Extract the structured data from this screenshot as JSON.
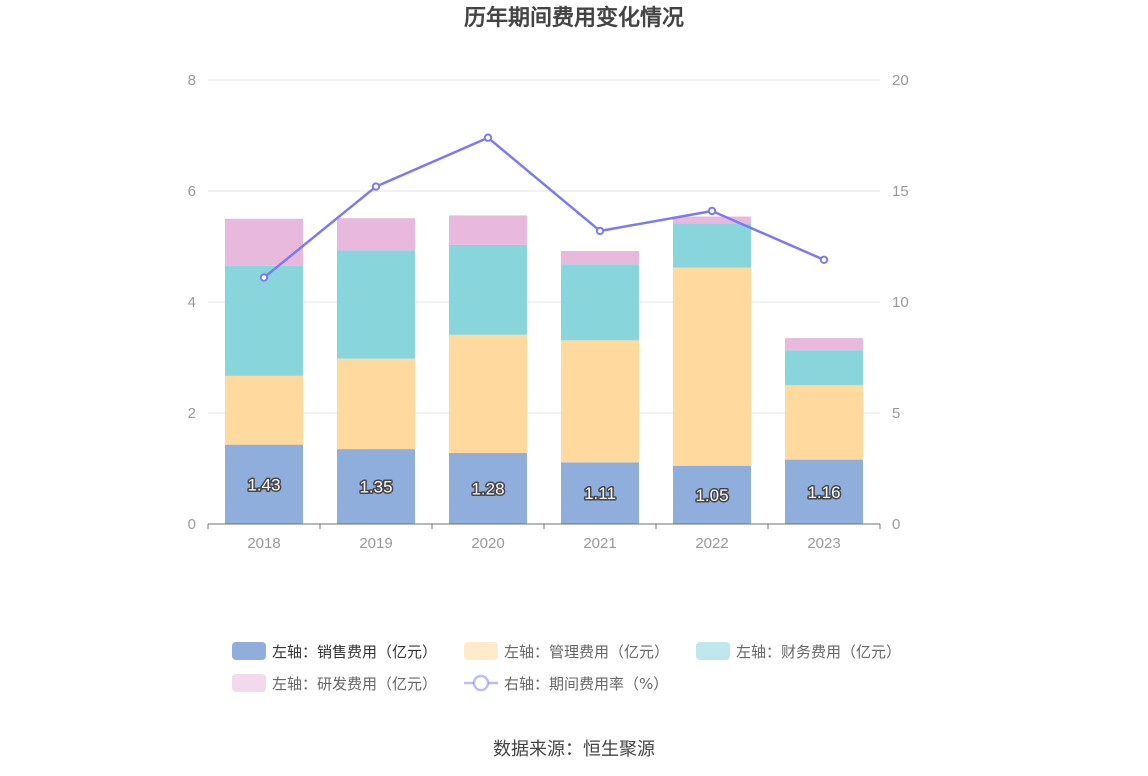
{
  "chart_data": {
    "type": "bar",
    "stacked": true,
    "title": "历年期间费用变化情况",
    "categories": [
      "2018",
      "2019",
      "2020",
      "2021",
      "2022",
      "2023"
    ],
    "y_left": {
      "min": 0,
      "max": 8,
      "ticks": [
        "0",
        "2",
        "4",
        "6",
        "8"
      ]
    },
    "y_right": {
      "min": 0,
      "max": 20,
      "ticks": [
        "0",
        "5",
        "10",
        "15",
        "20"
      ]
    },
    "grid": true,
    "legend_position": "bottom",
    "series": [
      {
        "name": "左轴：销售费用（亿元）",
        "type": "bar",
        "axis": "left",
        "color": "#8FAEDC",
        "values": [
          1.43,
          1.35,
          1.28,
          1.11,
          1.05,
          1.16
        ],
        "labels": [
          "1.43",
          "1.35",
          "1.28",
          "1.11",
          "1.05",
          "1.16"
        ]
      },
      {
        "name": "左轴：管理费用（亿元）",
        "type": "bar",
        "axis": "left",
        "color": "#FFD99E",
        "values": [
          1.24,
          1.63,
          2.13,
          2.2,
          3.57,
          1.34
        ]
      },
      {
        "name": "左轴：财务费用（亿元）",
        "type": "bar",
        "axis": "left",
        "color": "#88D5DB",
        "values": [
          1.98,
          1.95,
          1.62,
          1.37,
          0.8,
          0.63
        ]
      },
      {
        "name": "左轴：研发费用（亿元）",
        "type": "bar",
        "axis": "left",
        "color": "#E8B9DC",
        "values": [
          0.85,
          0.58,
          0.53,
          0.24,
          0.12,
          0.22
        ]
      },
      {
        "name": "右轴：期间费用率（%）",
        "type": "line",
        "axis": "right",
        "color": "#7B7BEE",
        "values": [
          11.1,
          15.2,
          17.4,
          13.2,
          14.1,
          11.9
        ]
      }
    ]
  },
  "source": "数据来源：恒生聚源"
}
